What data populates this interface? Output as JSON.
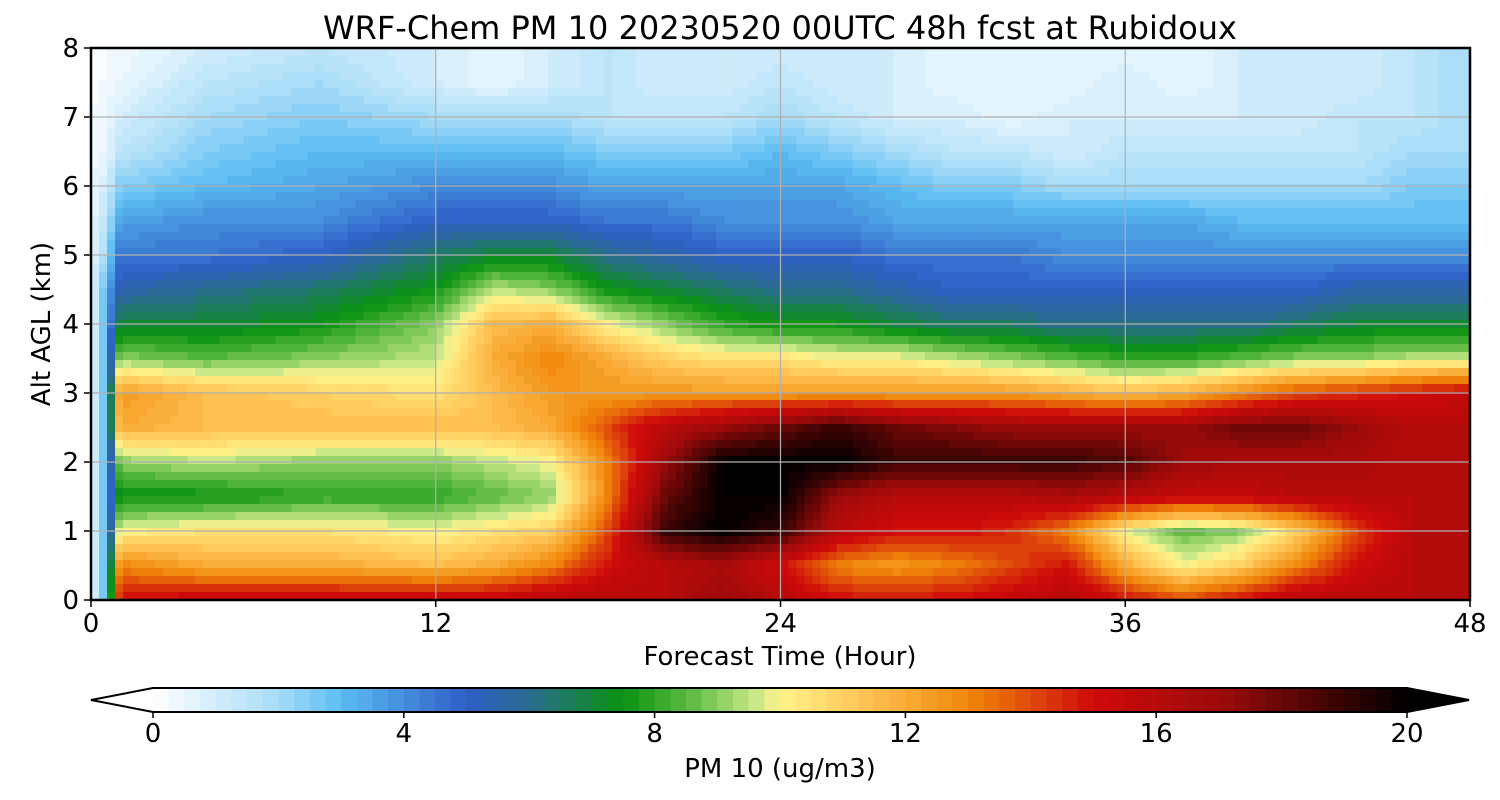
{
  "chart_data": {
    "type": "heatmap",
    "title": "WRF-Chem PM 10  20230520 00UTC 48h fcst at Rubidoux",
    "xlabel": "Forecast Time (Hour)",
    "ylabel": "Alt AGL (km)",
    "xlim": [
      0,
      48
    ],
    "ylim": [
      0,
      8
    ],
    "x_ticks": [
      0,
      12,
      24,
      36,
      48
    ],
    "y_ticks": [
      0,
      1,
      2,
      3,
      4,
      5,
      6,
      7,
      8
    ],
    "grid": true,
    "x": [
      0,
      0.5,
      1,
      4,
      8,
      12,
      14,
      16,
      18,
      20,
      22,
      24,
      26,
      28,
      30,
      32,
      34,
      36,
      38,
      40,
      42,
      44,
      46,
      48
    ],
    "y": [
      0,
      0.5,
      1,
      1.5,
      2,
      2.5,
      3,
      3.5,
      4,
      4.5,
      5,
      5.5,
      6,
      6.5,
      7,
      7.5,
      8
    ],
    "z": [
      [
        0.5,
        3,
        15,
        15.5,
        15.5,
        15.5,
        15.5,
        16,
        16,
        16,
        17,
        16,
        15,
        15,
        15,
        15.5,
        16,
        15,
        14,
        15,
        16,
        16,
        16,
        16
      ],
      [
        0.5,
        3,
        13,
        12,
        12,
        11.5,
        12,
        13,
        15,
        16,
        16.5,
        15,
        13,
        12.5,
        13,
        14,
        15,
        12,
        10,
        11,
        13,
        15,
        16,
        16
      ],
      [
        0.5,
        3,
        10,
        10.5,
        10.5,
        10,
        10.5,
        11,
        14,
        19,
        20,
        19,
        16,
        15,
        15,
        14.5,
        13,
        10,
        8.5,
        9,
        11,
        14,
        16,
        16
      ],
      [
        0.5,
        3,
        7.5,
        7.5,
        8,
        8,
        8.5,
        9,
        13,
        18,
        20,
        20,
        17,
        16,
        16,
        16,
        16.5,
        16,
        15.5,
        15.5,
        16,
        16,
        16,
        16
      ],
      [
        0.5,
        3,
        9,
        9.5,
        9,
        9,
        9.5,
        10,
        13,
        17,
        20,
        20,
        20,
        19,
        19,
        19,
        19,
        18.5,
        17,
        16.5,
        16.5,
        16.5,
        16,
        16
      ],
      [
        0.5,
        3,
        12,
        11.5,
        11.5,
        11.5,
        11.5,
        12,
        14,
        16,
        17,
        18,
        19,
        18,
        17.5,
        17,
        17,
        17,
        17,
        18,
        18,
        17,
        16,
        16
      ],
      [
        0.5,
        3,
        12.5,
        11.5,
        11,
        10.5,
        11.5,
        12.5,
        12.5,
        12.5,
        12.5,
        12.5,
        12.5,
        12.5,
        12.5,
        12.5,
        12,
        11.5,
        12,
        13,
        14,
        14.5,
        15,
        15.5
      ],
      [
        0.5,
        3,
        9,
        8.5,
        9,
        9.5,
        12,
        13,
        12,
        11,
        10.5,
        10.5,
        10,
        10,
        9.5,
        9,
        8.5,
        8,
        8,
        8.5,
        9,
        9,
        9.5,
        9.5
      ],
      [
        0.5,
        3,
        7,
        7,
        7.5,
        9,
        11.5,
        12,
        10,
        9,
        8,
        7.5,
        7.5,
        7,
        6.5,
        6.5,
        6,
        6,
        6,
        6,
        6.5,
        7,
        7,
        7
      ],
      [
        0.5,
        3,
        5.5,
        6,
        6.5,
        7.5,
        9.5,
        9,
        7.5,
        7,
        6.5,
        6,
        6,
        5.5,
        5,
        5,
        5,
        5,
        5,
        5,
        5,
        5.5,
        5.5,
        5.5
      ],
      [
        0.5,
        2,
        4.5,
        4.5,
        5,
        6.5,
        7,
        7,
        6,
        5.5,
        5,
        5,
        5,
        4.5,
        4.5,
        4.5,
        4,
        4,
        4,
        4,
        4,
        4,
        4,
        4
      ],
      [
        0.5,
        1.5,
        3.5,
        4,
        4,
        5,
        5,
        5,
        4.5,
        4.5,
        4,
        4,
        4,
        3.5,
        3.5,
        3.5,
        3.5,
        3.5,
        3.5,
        3,
        3,
        3,
        3,
        3
      ],
      [
        0.5,
        1,
        2.5,
        3,
        3.5,
        4,
        4,
        4,
        3.5,
        3.5,
        3.5,
        3.5,
        3.5,
        3,
        2.5,
        2.5,
        2,
        2,
        2,
        2,
        2,
        2,
        2.5,
        2.5
      ],
      [
        0.3,
        0.5,
        1.5,
        2.5,
        3,
        3,
        3,
        3,
        2.5,
        2.5,
        2.5,
        3,
        2.5,
        2,
        1.5,
        1.5,
        1,
        1.5,
        1.5,
        1.5,
        1.5,
        1.5,
        2,
        2
      ],
      [
        0.2,
        0.5,
        1,
        2,
        2.5,
        2,
        2,
        2,
        1.5,
        1.5,
        1.5,
        2,
        1.5,
        1,
        1,
        0.5,
        1,
        1,
        1,
        1,
        1,
        1.5,
        1.5,
        2
      ],
      [
        0.1,
        0.3,
        0.5,
        1.5,
        2,
        1,
        0.5,
        1,
        1.5,
        1,
        1,
        1.5,
        1,
        1,
        0.5,
        0.5,
        0.5,
        1,
        0.5,
        1,
        1,
        1,
        1.5,
        2
      ],
      [
        0,
        0.2,
        0.3,
        1,
        1.5,
        1,
        0.5,
        1,
        1.5,
        1,
        1,
        1,
        1,
        1,
        0.5,
        0.5,
        0.5,
        0.5,
        0.5,
        1,
        1,
        1,
        1.5,
        2
      ]
    ],
    "colorbar": {
      "label": "PM 10  (ug/m3)",
      "min": 0,
      "max": 20,
      "ticks": [
        0,
        4,
        8,
        12,
        16,
        20
      ],
      "extend": "both",
      "levels": 80,
      "colors": [
        {
          "v": 0,
          "c": "#ffffff"
        },
        {
          "v": 2,
          "c": "#a8dcf8"
        },
        {
          "v": 3,
          "c": "#5bbcf2"
        },
        {
          "v": 5,
          "c": "#2f5fc6"
        },
        {
          "v": 6,
          "c": "#2a6c90"
        },
        {
          "v": 7.5,
          "c": "#0a9210"
        },
        {
          "v": 8.5,
          "c": "#58b840"
        },
        {
          "v": 9.6,
          "c": "#c8e888"
        },
        {
          "v": 10,
          "c": "#fff48c"
        },
        {
          "v": 11.5,
          "c": "#fdbd4c"
        },
        {
          "v": 13,
          "c": "#f0880a"
        },
        {
          "v": 15,
          "c": "#cf0a0a"
        },
        {
          "v": 17,
          "c": "#9e0a0a"
        },
        {
          "v": 20,
          "c": "#000000"
        }
      ]
    }
  }
}
